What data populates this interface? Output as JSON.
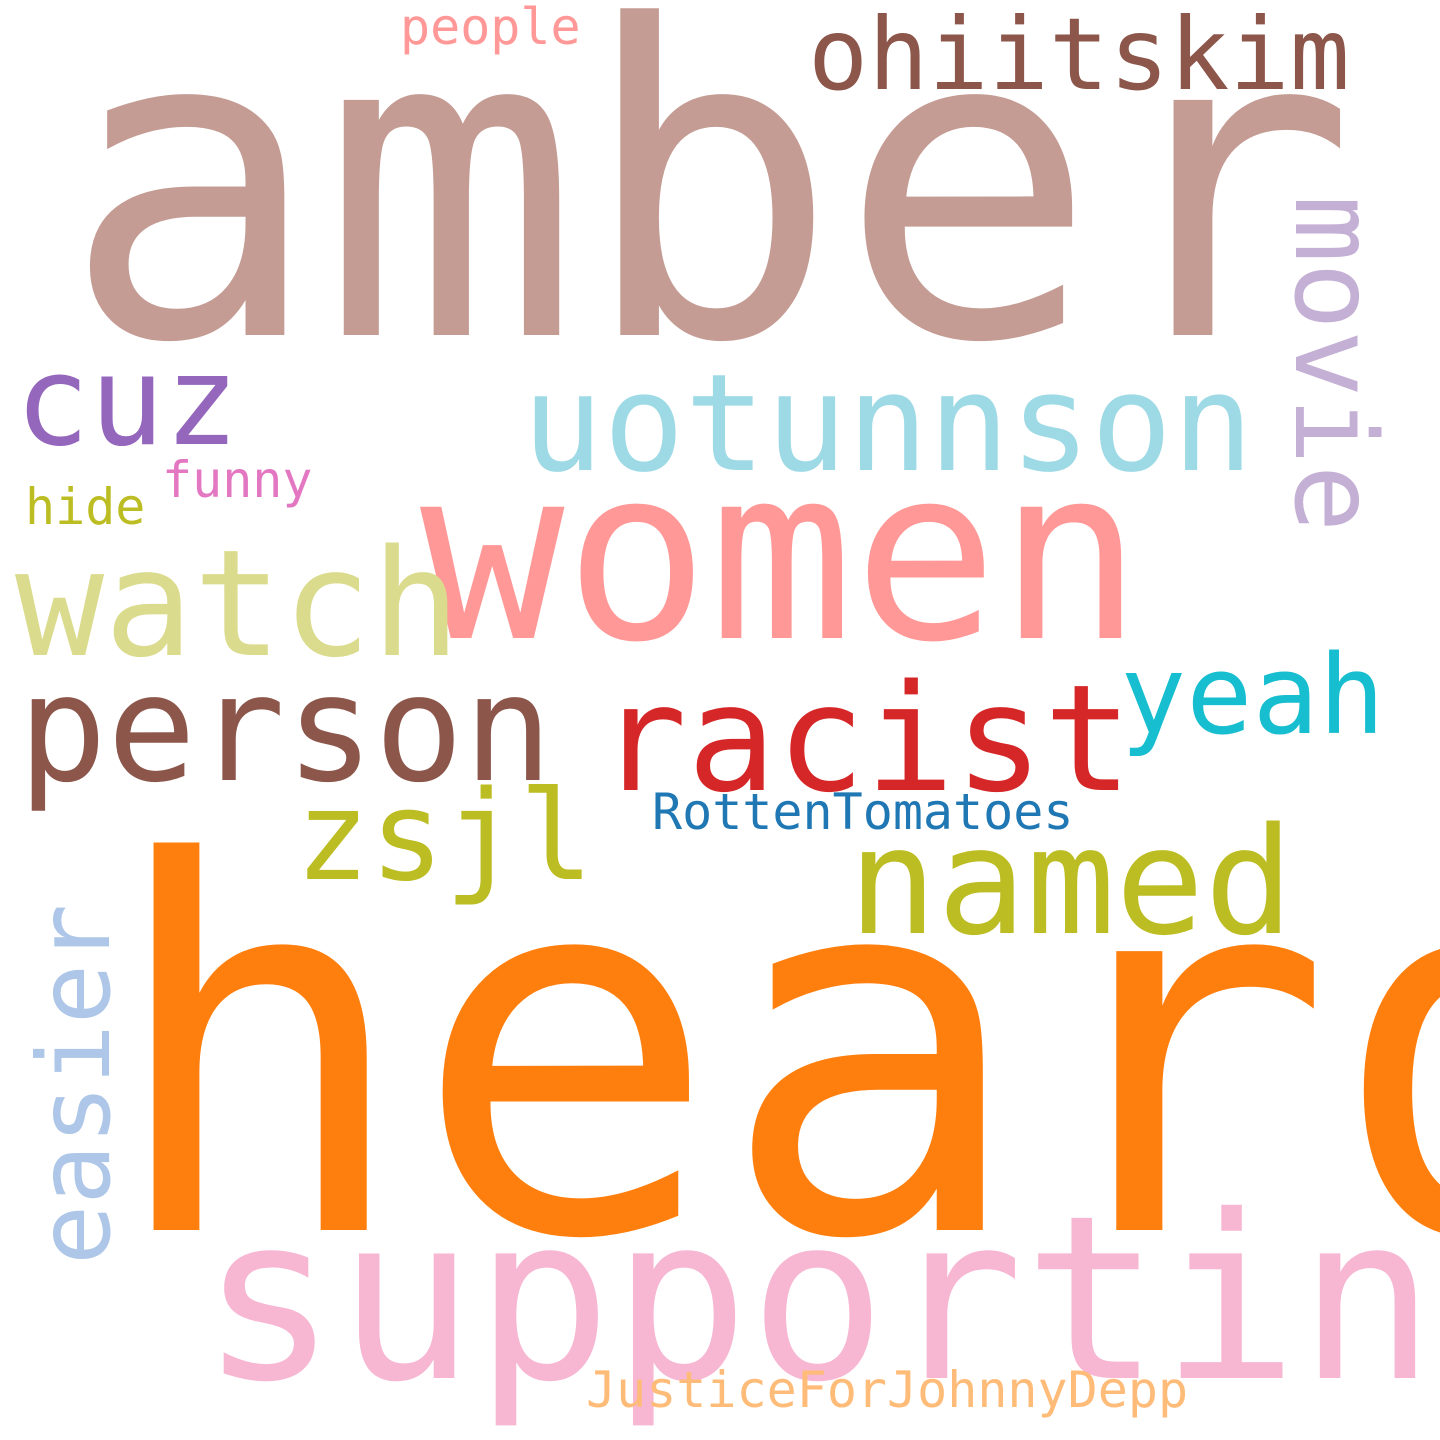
{
  "words": [
    {
      "text": "amber",
      "color": "#c49c94"
    },
    {
      "text": "heard",
      "color": "#ff7f0e"
    },
    {
      "text": "women",
      "color": "#ff9896"
    },
    {
      "text": "supporting",
      "color": "#f7b6d2"
    },
    {
      "text": "person",
      "color": "#8c564b"
    },
    {
      "text": "uotunnson",
      "color": "#9edae5"
    },
    {
      "text": "watch",
      "color": "#dbdb8d"
    },
    {
      "text": "racist",
      "color": "#d62728"
    },
    {
      "text": "named",
      "color": "#bcbd22"
    },
    {
      "text": "movie",
      "color": "#c5b0d5"
    },
    {
      "text": "ohiitskim",
      "color": "#8c564b"
    },
    {
      "text": "easier",
      "color": "#aec7e8"
    },
    {
      "text": "zsjl",
      "color": "#bcbd22"
    },
    {
      "text": "yeah",
      "color": "#17becf"
    },
    {
      "text": "cuz",
      "color": "#9467bd"
    },
    {
      "text": "RottenTomatoes",
      "color": "#1f77b4"
    },
    {
      "text": "JusticeForJohnnyDepp",
      "color": "#ffbb78"
    },
    {
      "text": "funny",
      "color": "#e377c2"
    },
    {
      "text": "hide",
      "color": "#bcbd22"
    },
    {
      "text": "people",
      "color": "#ff9896"
    }
  ]
}
